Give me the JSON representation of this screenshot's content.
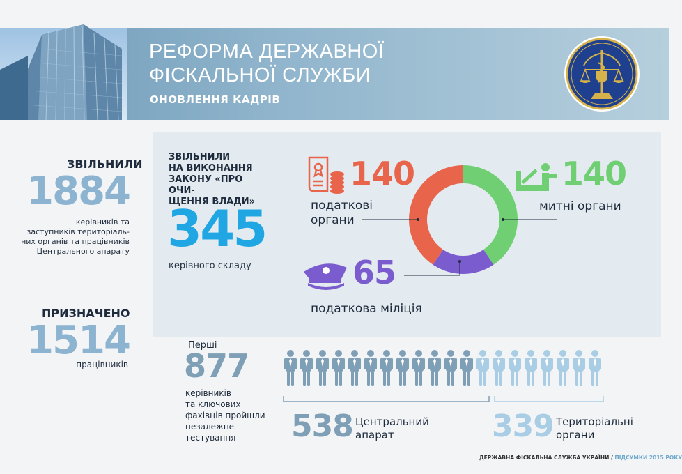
{
  "header": {
    "title_line1": "РЕФОРМА ДЕРЖАВНОЇ",
    "title_line2": "ФІСКАЛЬНОЇ СЛУЖБИ",
    "subtitle": "ОНОВЛЕННЯ КАДРІВ"
  },
  "dismissed": {
    "heading": "ЗВІЛЬНИЛИ",
    "number": "1884",
    "description_lines": [
      "керівників та",
      "заступників територіаль-",
      "них органів та працівників",
      "Центрального апарату"
    ]
  },
  "appointed": {
    "heading": "ПРИЗНАЧЕНО",
    "number": "1514",
    "description": "працівників"
  },
  "lustration": {
    "heading_lines": [
      "ЗВІЛЬНИЛИ",
      "НА ВИКОНАННЯ",
      "ЗАКОНУ «ПРО ОЧИ-",
      "ЩЕННЯ ВЛАДИ»"
    ],
    "number": "345",
    "description": "керівного складу"
  },
  "chart_data": {
    "type": "pie",
    "categories": [
      "податкові органи",
      "митні органи",
      "податкова міліція"
    ],
    "values": [
      140,
      140,
      65
    ],
    "colors": [
      "#e8644a",
      "#6fcf72",
      "#7a5ccf"
    ]
  },
  "breakdown": {
    "tax": {
      "number": "140",
      "label_line1": "податкові",
      "label_line2": "органи",
      "color": "#e8644a",
      "icon": "document-coins-icon"
    },
    "customs": {
      "number": "140",
      "label": "митні органи",
      "color": "#6fcf72",
      "icon": "customs-barrier-icon"
    },
    "police": {
      "number": "65",
      "label": "податкова міліція",
      "color": "#7a5ccf",
      "icon": "police-cap-icon"
    }
  },
  "testing": {
    "prefix": "Перші",
    "number": "877",
    "description_lines": [
      "керівників",
      "та ключових",
      "фахівців пройшли",
      "незалежне",
      "тестування"
    ],
    "central": {
      "number": "538",
      "label_line1": "Центральний",
      "label_line2": "апарат",
      "color": "#7f9fb6"
    },
    "territorial": {
      "number": "339",
      "label_line1": "Територіальні",
      "label_line2": "органи",
      "color": "#a9cde4"
    }
  },
  "footer": {
    "org": "ДЕРЖАВНА ФІСКАЛЬНА СЛУЖБА УКРАЇНИ",
    "separator": "/",
    "period": "ПІДСУМКИ 2015 РОКУ"
  }
}
